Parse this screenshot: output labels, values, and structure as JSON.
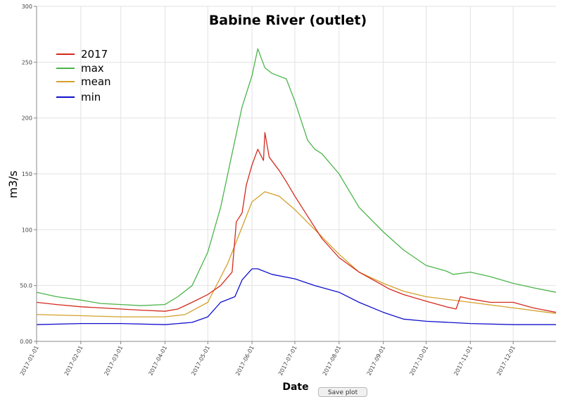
{
  "chart_data": {
    "type": "line",
    "title": "Babine River (outlet)",
    "xlabel": "Date",
    "ylabel": "m3/s",
    "ylim": [
      0,
      300
    ],
    "xlim": [
      "2017-01-01",
      "2017-12-31"
    ],
    "y_ticks": [
      "0.00",
      "50.0",
      "100",
      "150",
      "200",
      "250",
      "300"
    ],
    "y_tick_values": [
      0,
      50,
      100,
      150,
      200,
      250,
      300
    ],
    "x_ticks": [
      "2017-01-01",
      "2017-02-01",
      "2017-03-01",
      "2017-04-01",
      "2017-05-01",
      "2017-06-01",
      "2017-07-01",
      "2017-08-01",
      "2017-09-01",
      "2017-10-01",
      "2017-11-01",
      "2017-12-01"
    ],
    "grid": true,
    "legend_position": "top-left",
    "series": [
      {
        "name": "2017",
        "color": "#d42a1e",
        "x": [
          "2017-01-01",
          "2017-01-15",
          "2017-02-01",
          "2017-02-15",
          "2017-03-01",
          "2017-03-15",
          "2017-04-01",
          "2017-04-10",
          "2017-04-20",
          "2017-05-01",
          "2017-05-10",
          "2017-05-18",
          "2017-05-21",
          "2017-05-25",
          "2017-05-28",
          "2017-06-01",
          "2017-06-05",
          "2017-06-09",
          "2017-06-10",
          "2017-06-13",
          "2017-06-20",
          "2017-06-25",
          "2017-07-01",
          "2017-07-10",
          "2017-07-20",
          "2017-08-01",
          "2017-08-15",
          "2017-09-01",
          "2017-09-05",
          "2017-09-15",
          "2017-10-01",
          "2017-10-15",
          "2017-10-22",
          "2017-10-25",
          "2017-11-01",
          "2017-11-15",
          "2017-12-01",
          "2017-12-15",
          "2017-12-31"
        ],
        "values": [
          35,
          33,
          31,
          30,
          29,
          28,
          27,
          29,
          35,
          42,
          50,
          62,
          107,
          115,
          140,
          158,
          172,
          162,
          187,
          165,
          153,
          143,
          130,
          112,
          92,
          75,
          62,
          50,
          47,
          42,
          36,
          31,
          29,
          40,
          38,
          35,
          35,
          30,
          26
        ]
      },
      {
        "name": "max",
        "color": "#4bb54b",
        "x": [
          "2017-01-01",
          "2017-01-15",
          "2017-02-01",
          "2017-02-15",
          "2017-03-01",
          "2017-03-15",
          "2017-04-01",
          "2017-04-10",
          "2017-04-20",
          "2017-05-01",
          "2017-05-10",
          "2017-05-20",
          "2017-05-25",
          "2017-06-01",
          "2017-06-05",
          "2017-06-10",
          "2017-06-15",
          "2017-06-25",
          "2017-07-01",
          "2017-07-10",
          "2017-07-15",
          "2017-07-20",
          "2017-08-01",
          "2017-08-15",
          "2017-09-01",
          "2017-09-15",
          "2017-10-01",
          "2017-10-15",
          "2017-10-20",
          "2017-11-01",
          "2017-11-15",
          "2017-12-01",
          "2017-12-15",
          "2017-12-31"
        ],
        "values": [
          44,
          40,
          37,
          34,
          33,
          32,
          33,
          40,
          50,
          80,
          120,
          180,
          210,
          238,
          262,
          245,
          240,
          235,
          215,
          180,
          172,
          168,
          150,
          120,
          98,
          82,
          68,
          63,
          60,
          62,
          58,
          52,
          48,
          44
        ]
      },
      {
        "name": "mean",
        "color": "#d4a02a",
        "x": [
          "2017-01-01",
          "2017-02-01",
          "2017-03-01",
          "2017-04-01",
          "2017-04-15",
          "2017-05-01",
          "2017-05-15",
          "2017-06-01",
          "2017-06-10",
          "2017-06-20",
          "2017-07-01",
          "2017-07-15",
          "2017-08-01",
          "2017-08-15",
          "2017-09-01",
          "2017-09-15",
          "2017-10-01",
          "2017-11-01",
          "2017-12-01",
          "2017-12-31"
        ],
        "values": [
          24,
          23,
          22,
          22,
          24,
          35,
          70,
          125,
          134,
          130,
          118,
          100,
          78,
          62,
          52,
          45,
          40,
          35,
          30,
          25
        ]
      },
      {
        "name": "min",
        "color": "#1010cc",
        "x": [
          "2017-01-01",
          "2017-02-01",
          "2017-03-01",
          "2017-04-01",
          "2017-04-20",
          "2017-05-01",
          "2017-05-10",
          "2017-05-20",
          "2017-05-25",
          "2017-06-01",
          "2017-06-05",
          "2017-06-15",
          "2017-07-01",
          "2017-07-15",
          "2017-08-01",
          "2017-08-15",
          "2017-09-01",
          "2017-09-15",
          "2017-10-01",
          "2017-11-01",
          "2017-12-01",
          "2017-12-31"
        ],
        "values": [
          15,
          16,
          16,
          15,
          17,
          22,
          35,
          40,
          55,
          65,
          65,
          60,
          56,
          50,
          44,
          35,
          26,
          20,
          18,
          16,
          15,
          15
        ]
      }
    ]
  },
  "ui": {
    "save_label": "Save plot"
  }
}
